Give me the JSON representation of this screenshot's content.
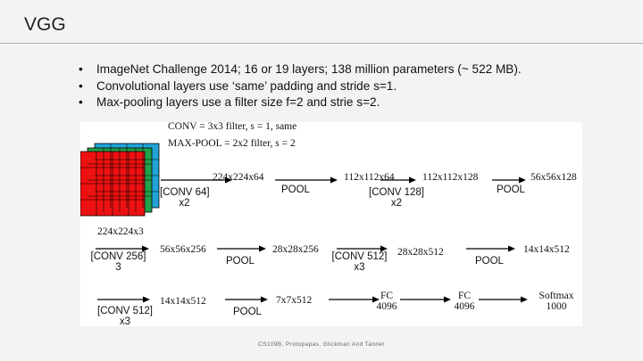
{
  "slide": {
    "title": "VGG",
    "bullets": [
      "ImageNet Challenge 2014; 16 or 19 layers; 138 million parameters (~ 522 MB).",
      "Convolutional layers use ‘same’ padding and stride s=1.",
      "Max-pooling layers use a filter size f=2 and strie s=2."
    ],
    "footer": "CS109B, Protopapas, Glickman And Tanner"
  },
  "diagram": {
    "legend": [
      "CONV = 3x3 filter, s = 1, same",
      "MAX-POOL = 2x2 filter, s = 2"
    ],
    "input_label": "224x224x3",
    "colors": {
      "front": "#ee1111",
      "middle": "#21a04a",
      "back": "#22a3d8"
    },
    "row1": {
      "shape1": "224x224x64",
      "op1": [
        "[CONV 64]",
        "x2"
      ],
      "shape2": "112x112x64",
      "op2": "POOL",
      "shape3": "112x112x128",
      "op3": [
        "[CONV 128]",
        "x2"
      ],
      "op4": "POOL",
      "shape4": "56x56x128"
    },
    "row2": {
      "op1": [
        "[CONV 256]",
        "3"
      ],
      "shape1": "56x56x256",
      "op2": "POOL",
      "shape2": "28x28x256",
      "op3": [
        "[CONV 512]",
        "x3"
      ],
      "shape3": "28x28x512",
      "op4": "POOL",
      "shape4": "14x14x512"
    },
    "row3": {
      "op1": [
        "[CONV 512]",
        "x3"
      ],
      "shape1": "14x14x512",
      "op2": "POOL",
      "shape2": "7x7x512",
      "fc1": [
        "FC",
        "4096"
      ],
      "fc2": [
        "FC",
        "4096"
      ],
      "softmax": [
        "Softmax",
        "1000"
      ]
    }
  }
}
